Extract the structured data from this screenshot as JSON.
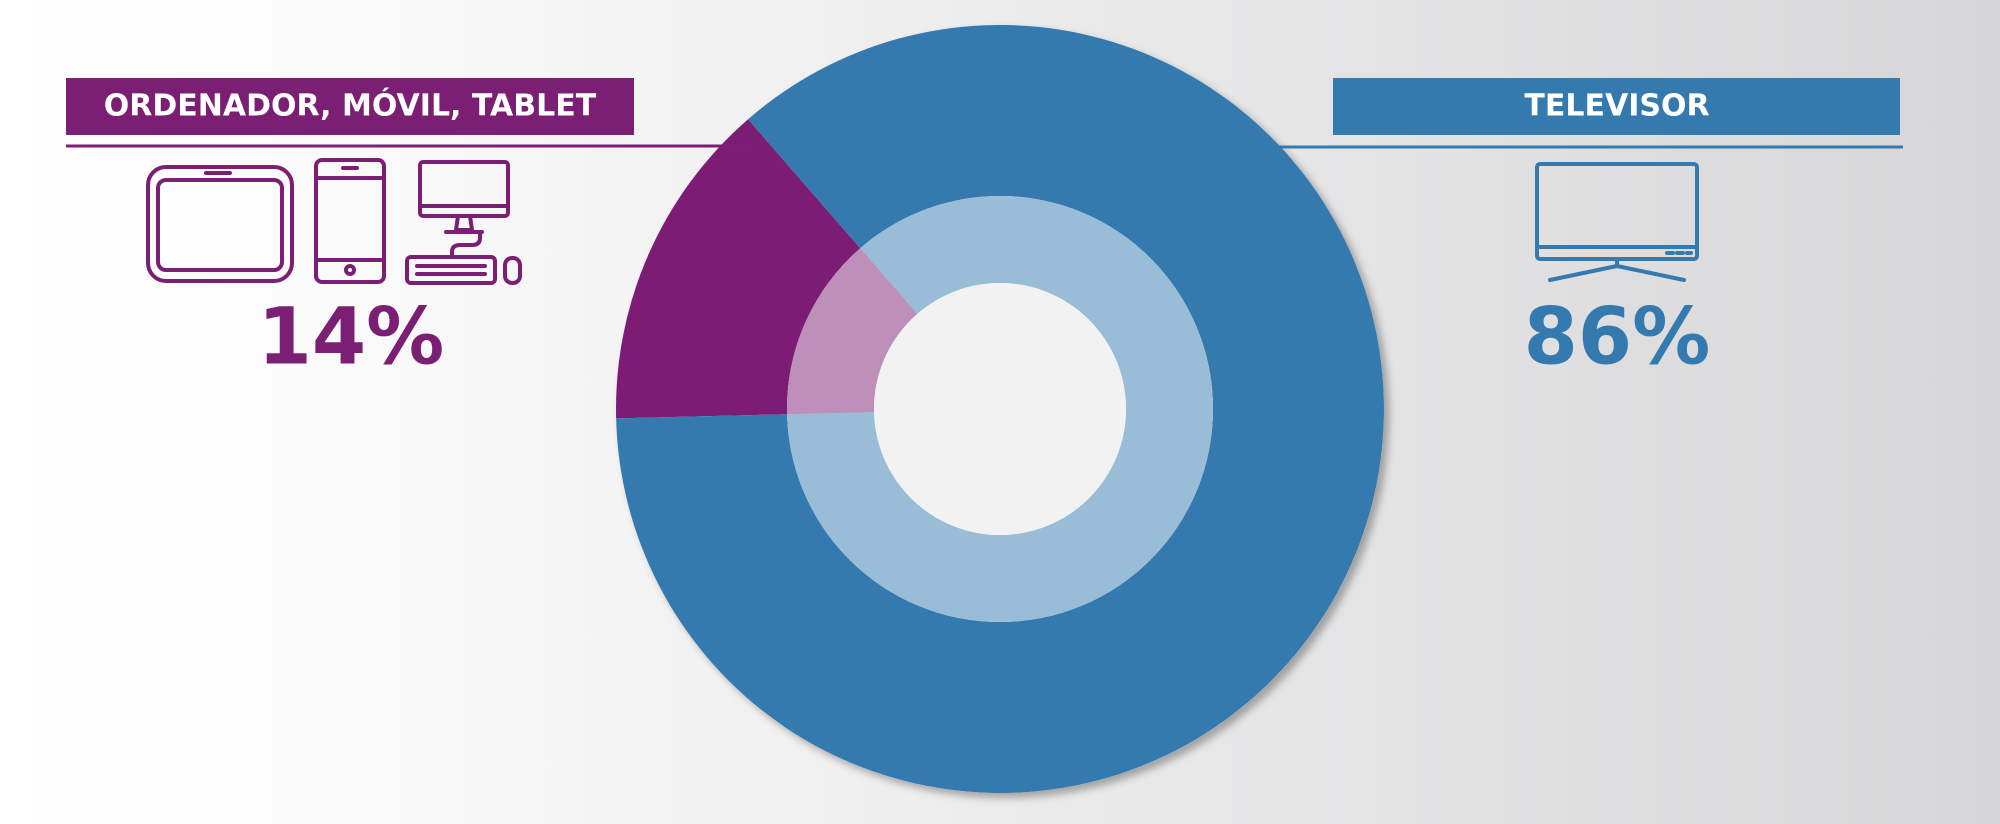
{
  "chart_data": {
    "type": "pie",
    "categories": [
      "ORDENADOR, MÓVIL, TABLET",
      "TELEVISOR"
    ],
    "values": [
      14,
      86
    ],
    "value_labels": [
      "14%",
      "86%"
    ],
    "colors": [
      "#7b1f74",
      "#347aaf"
    ]
  }
}
